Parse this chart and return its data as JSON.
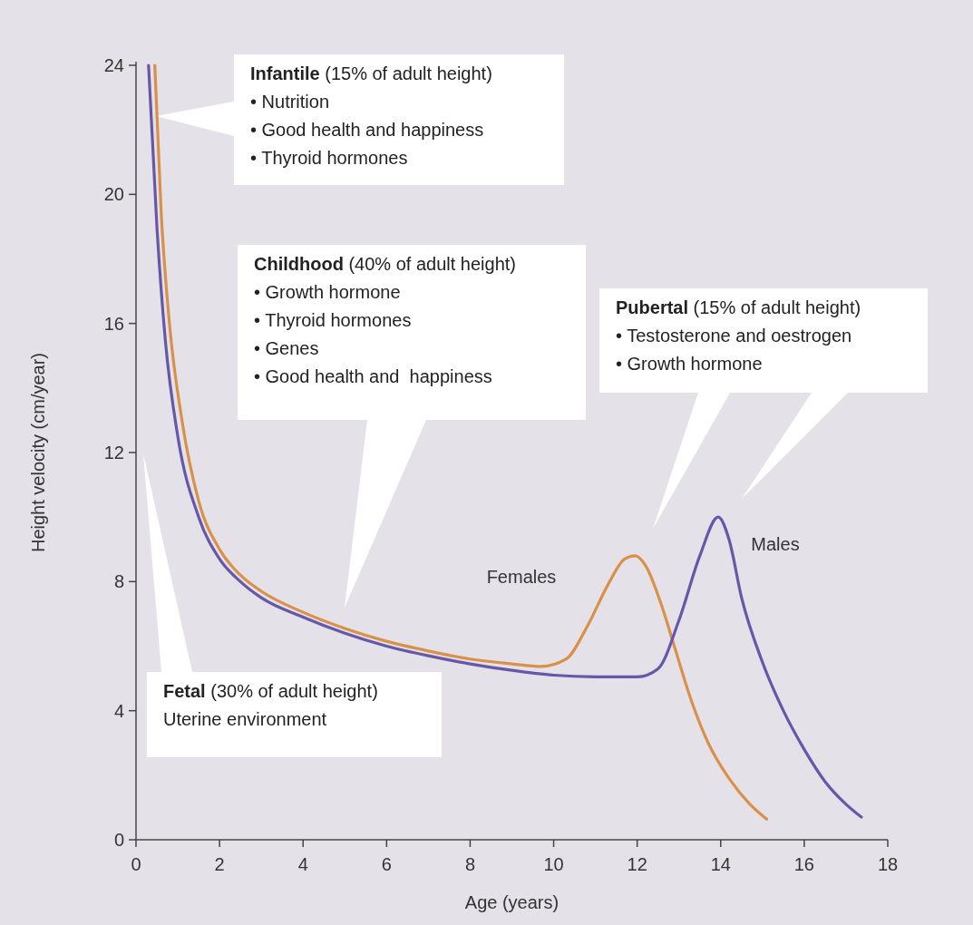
{
  "chart_data": {
    "type": "line",
    "xlabel": "Age (years)",
    "ylabel": "Height velocity (cm/year)",
    "xlim": [
      0,
      18
    ],
    "xticks": [
      0,
      2,
      4,
      6,
      8,
      10,
      12,
      14,
      16,
      18
    ],
    "ylim": [
      0,
      24
    ],
    "yticks": [
      0,
      4,
      8,
      12,
      16,
      20,
      24
    ],
    "marker": "none",
    "line_style": "solid",
    "series": [
      {
        "name": "Females",
        "color": "#d9914a",
        "x": [
          0.45,
          0.6,
          0.8,
          1.1,
          1.5,
          2,
          2.5,
          3,
          4,
          5,
          6,
          7,
          8,
          9,
          9.7,
          10.3,
          10.8,
          11.3,
          11.7,
          11.95,
          12.2,
          12.6,
          12.9,
          13.3,
          13.7,
          14.2,
          14.7,
          15.1
        ],
        "values": [
          24,
          19.5,
          16,
          13,
          10.5,
          9,
          8.2,
          7.7,
          7.05,
          6.55,
          6.15,
          5.85,
          5.6,
          5.45,
          5.37,
          5.6,
          6.6,
          7.9,
          8.7,
          8.8,
          8.5,
          7.2,
          5.95,
          4.3,
          3,
          1.9,
          1.1,
          0.64
        ]
      },
      {
        "name": "Males",
        "color": "#6558a8",
        "x": [
          0.3,
          0.5,
          0.7,
          1,
          1.5,
          2,
          2.5,
          3,
          4,
          5,
          6,
          7,
          8,
          9,
          10,
          11,
          12,
          12.5,
          13,
          13.5,
          13.94,
          14.2,
          14.5,
          15,
          15.5,
          16,
          16.5,
          17,
          17.37
        ],
        "values": [
          24,
          19,
          15.5,
          12.5,
          10,
          8.7,
          8,
          7.5,
          6.9,
          6.4,
          6,
          5.7,
          5.45,
          5.25,
          5.1,
          5.05,
          5.05,
          5.3,
          6.8,
          8.8,
          10,
          9.3,
          7.5,
          5.5,
          4,
          2.8,
          1.8,
          1.1,
          0.7
        ]
      }
    ],
    "annotations": [
      "Infantile (15% of adult height)\n• Nutrition\n• Good health and happiness\n• Thyroid hormones",
      "Childhood (40% of adult height)\n• Growth hormone\n• Thyroid hormones\n• Genes\n• Good health and  happiness",
      "Pubertal (15% of adult height)\n• Testosterone and oestrogen\n• Growth hormone",
      "Fetal (30% of adult height)\nUterine environment"
    ]
  }
}
